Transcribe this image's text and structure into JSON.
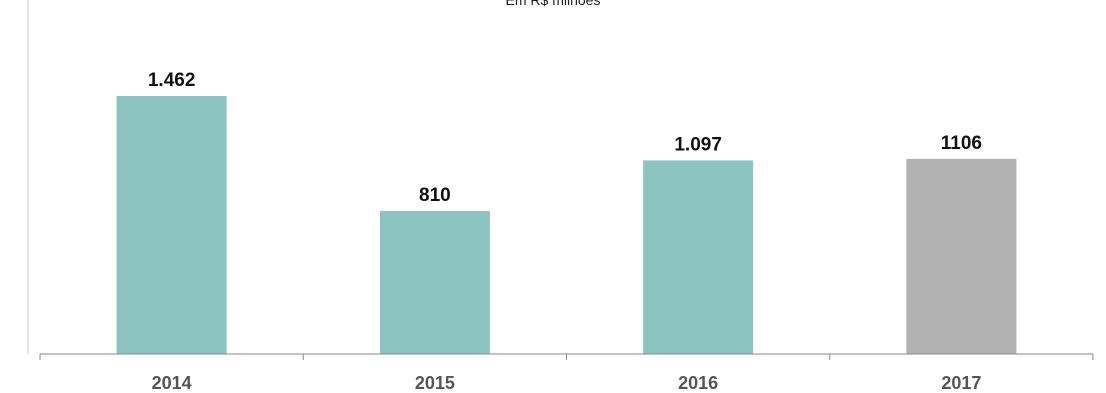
{
  "chart_data": {
    "type": "bar",
    "title": "",
    "subtitle": "Em R$ milhões",
    "xlabel": "",
    "ylabel": "",
    "categories": [
      "2014",
      "2015",
      "2016",
      "2017"
    ],
    "values": [
      1462,
      810,
      1097,
      1106
    ],
    "data_labels": [
      "1.462",
      "810",
      "1.097",
      "1106"
    ],
    "ylim": [
      0,
      1600
    ],
    "grid": false,
    "legend": "none",
    "colors": {
      "bars": [
        "#8DC3C1",
        "#8DC3C1",
        "#8DC3C1",
        "#B2B2B2"
      ],
      "axis": "#888888"
    }
  }
}
